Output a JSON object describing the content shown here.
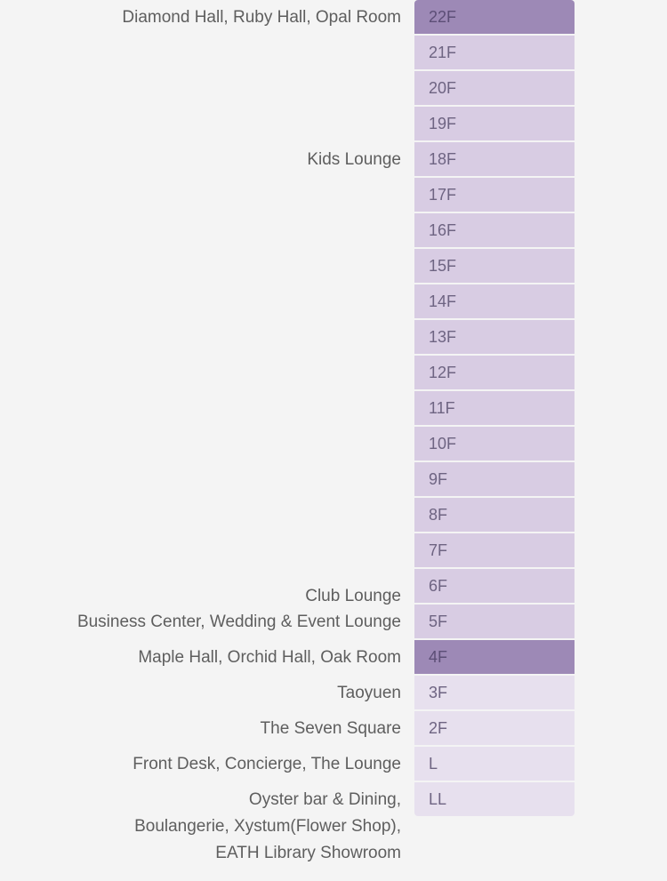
{
  "floors": [
    {
      "id": "22F",
      "label": "22F",
      "tier": "dark"
    },
    {
      "id": "21F",
      "label": "21F",
      "tier": "mid"
    },
    {
      "id": "20F",
      "label": "20F",
      "tier": "mid"
    },
    {
      "id": "19F",
      "label": "19F",
      "tier": "mid"
    },
    {
      "id": "18F",
      "label": "18F",
      "tier": "mid"
    },
    {
      "id": "17F",
      "label": "17F",
      "tier": "mid"
    },
    {
      "id": "16F",
      "label": "16F",
      "tier": "mid"
    },
    {
      "id": "15F",
      "label": "15F",
      "tier": "mid"
    },
    {
      "id": "14F",
      "label": "14F",
      "tier": "mid"
    },
    {
      "id": "13F",
      "label": "13F",
      "tier": "mid"
    },
    {
      "id": "12F",
      "label": "12F",
      "tier": "mid"
    },
    {
      "id": "11F",
      "label": "11F",
      "tier": "mid"
    },
    {
      "id": "10F",
      "label": "10F",
      "tier": "mid"
    },
    {
      "id": "9F",
      "label": "9F",
      "tier": "mid"
    },
    {
      "id": "8F",
      "label": "8F",
      "tier": "mid"
    },
    {
      "id": "7F",
      "label": "7F",
      "tier": "mid"
    },
    {
      "id": "6F",
      "label": "6F",
      "tier": "mid"
    },
    {
      "id": "5F",
      "label": "5F",
      "tier": "mid"
    },
    {
      "id": "4F",
      "label": "4F",
      "tier": "dark"
    },
    {
      "id": "3F",
      "label": "3F",
      "tier": "light"
    },
    {
      "id": "2F",
      "label": "2F",
      "tier": "light"
    },
    {
      "id": "L",
      "label": "L",
      "tier": "light"
    },
    {
      "id": "LL",
      "label": "LL",
      "tier": "light"
    }
  ],
  "facilities": [
    {
      "floor": "22F",
      "lines": [
        "Diamond Hall, Ruby Hall, Opal Room"
      ]
    },
    {
      "floor": "18F",
      "lines": [
        "Kids Lounge"
      ]
    },
    {
      "floor": "6F",
      "lines": [
        "Club Lounge"
      ]
    },
    {
      "floor": "5F",
      "lines": [
        "Business Center, Wedding & Event Lounge"
      ]
    },
    {
      "floor": "4F",
      "lines": [
        "Maple Hall, Orchid Hall, Oak Room"
      ]
    },
    {
      "floor": "3F",
      "lines": [
        "Taoyuen"
      ]
    },
    {
      "floor": "2F",
      "lines": [
        "The Seven Square"
      ]
    },
    {
      "floor": "L",
      "lines": [
        "Front Desk, Concierge, The Lounge"
      ]
    },
    {
      "floor": "LL",
      "lines": [
        "Oyster bar & Dining,",
        "Boulangerie, Xystum(Flower Shop),",
        "EATH Library Showroom"
      ]
    }
  ],
  "colors": {
    "page_background": "#f4f4f4",
    "highlight_floor": "#9d89b6",
    "upper_floor": "#d8cce3",
    "lower_floor": "#e7e0ee",
    "floor_text": "#6e6482",
    "label_text": "#5e5e5e"
  }
}
